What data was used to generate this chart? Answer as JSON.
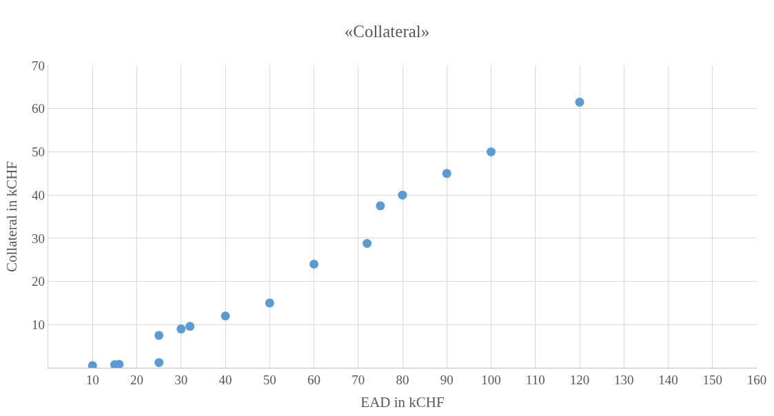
{
  "chart_data": {
    "type": "scatter",
    "title": "«Collateral»",
    "xlabel": "EAD in kCHF",
    "ylabel": "Collateral in kCHF",
    "x": [
      10,
      15,
      16,
      25,
      25,
      30,
      32,
      40,
      50,
      60,
      72,
      75,
      80,
      90,
      100,
      120
    ],
    "series": [
      {
        "color": "#5b9bd5",
        "values": [
          0.5,
          0.7,
          0.8,
          1.2,
          7.5,
          9,
          9.6,
          12,
          15,
          24,
          28.8,
          37.5,
          40,
          45,
          50,
          61.5
        ]
      }
    ],
    "xlim": [
      0,
      160
    ],
    "xticks": [
      10,
      20,
      30,
      40,
      50,
      60,
      70,
      80,
      90,
      100,
      110,
      120,
      130,
      140,
      150,
      160
    ],
    "ylim": [
      0,
      70
    ],
    "yticks": [
      10,
      20,
      30,
      40,
      50,
      60,
      70
    ],
    "grid": true,
    "marker": "circle"
  }
}
